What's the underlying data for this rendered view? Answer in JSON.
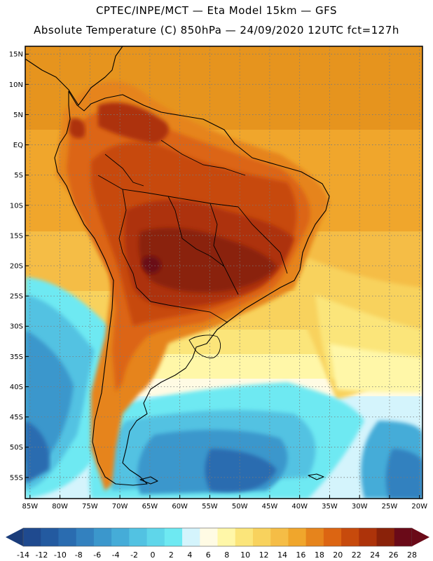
{
  "header": {
    "line1": "CPTEC/INPE/MCT —  Eta Model 15km — GFS",
    "line2": "Absolute Temperature (C) 850hPa — 24/09/2020 12UTC fct=127h"
  },
  "map": {
    "lat_labels": [
      "15N",
      "10N",
      "5N",
      "EQ",
      "5S",
      "10S",
      "15S",
      "20S",
      "25S",
      "30S",
      "35S",
      "40S",
      "45S",
      "50S",
      "55S"
    ],
    "lat_values": [
      15,
      10,
      5,
      0,
      -5,
      -10,
      -15,
      -20,
      -25,
      -30,
      -35,
      -40,
      -45,
      -50,
      -55
    ],
    "lon_labels": [
      "85W",
      "80W",
      "75W",
      "70W",
      "65W",
      "60W",
      "55W",
      "50W",
      "45W",
      "40W",
      "35W",
      "30W",
      "25W",
      "20W"
    ],
    "lon_values": [
      -85,
      -80,
      -75,
      -70,
      -65,
      -60,
      -55,
      -50,
      -45,
      -40,
      -35,
      -30,
      -25,
      -20
    ],
    "lat_range": [
      -58.5,
      16.3
    ],
    "lon_range": [
      -85.8,
      -19.5
    ]
  },
  "colorbar": {
    "labels": [
      "-14",
      "-12",
      "-10",
      "-8",
      "-6",
      "-4",
      "-2",
      "0",
      "2",
      "4",
      "6",
      "8",
      "10",
      "12",
      "14",
      "16",
      "18",
      "20",
      "22",
      "24",
      "26",
      "28"
    ],
    "colors": {
      "low_arrow": "#1a3c7a",
      "high_arrow": "#6a0a18",
      "steps": [
        "#1f4a8f",
        "#235aa0",
        "#2a6cb0",
        "#3381bf",
        "#3b97cc",
        "#45acd8",
        "#52c2e2",
        "#5fd6ea",
        "#6ee9f2",
        "#d4f4fc",
        "#fffbe4",
        "#fff7a8",
        "#fbe57a",
        "#f8d25d",
        "#f5bd46",
        "#f0a62c",
        "#e6841c",
        "#dc6512",
        "#c74a0c",
        "#ad330a",
        "#8a2209",
        "#6a0a18"
      ]
    }
  }
}
